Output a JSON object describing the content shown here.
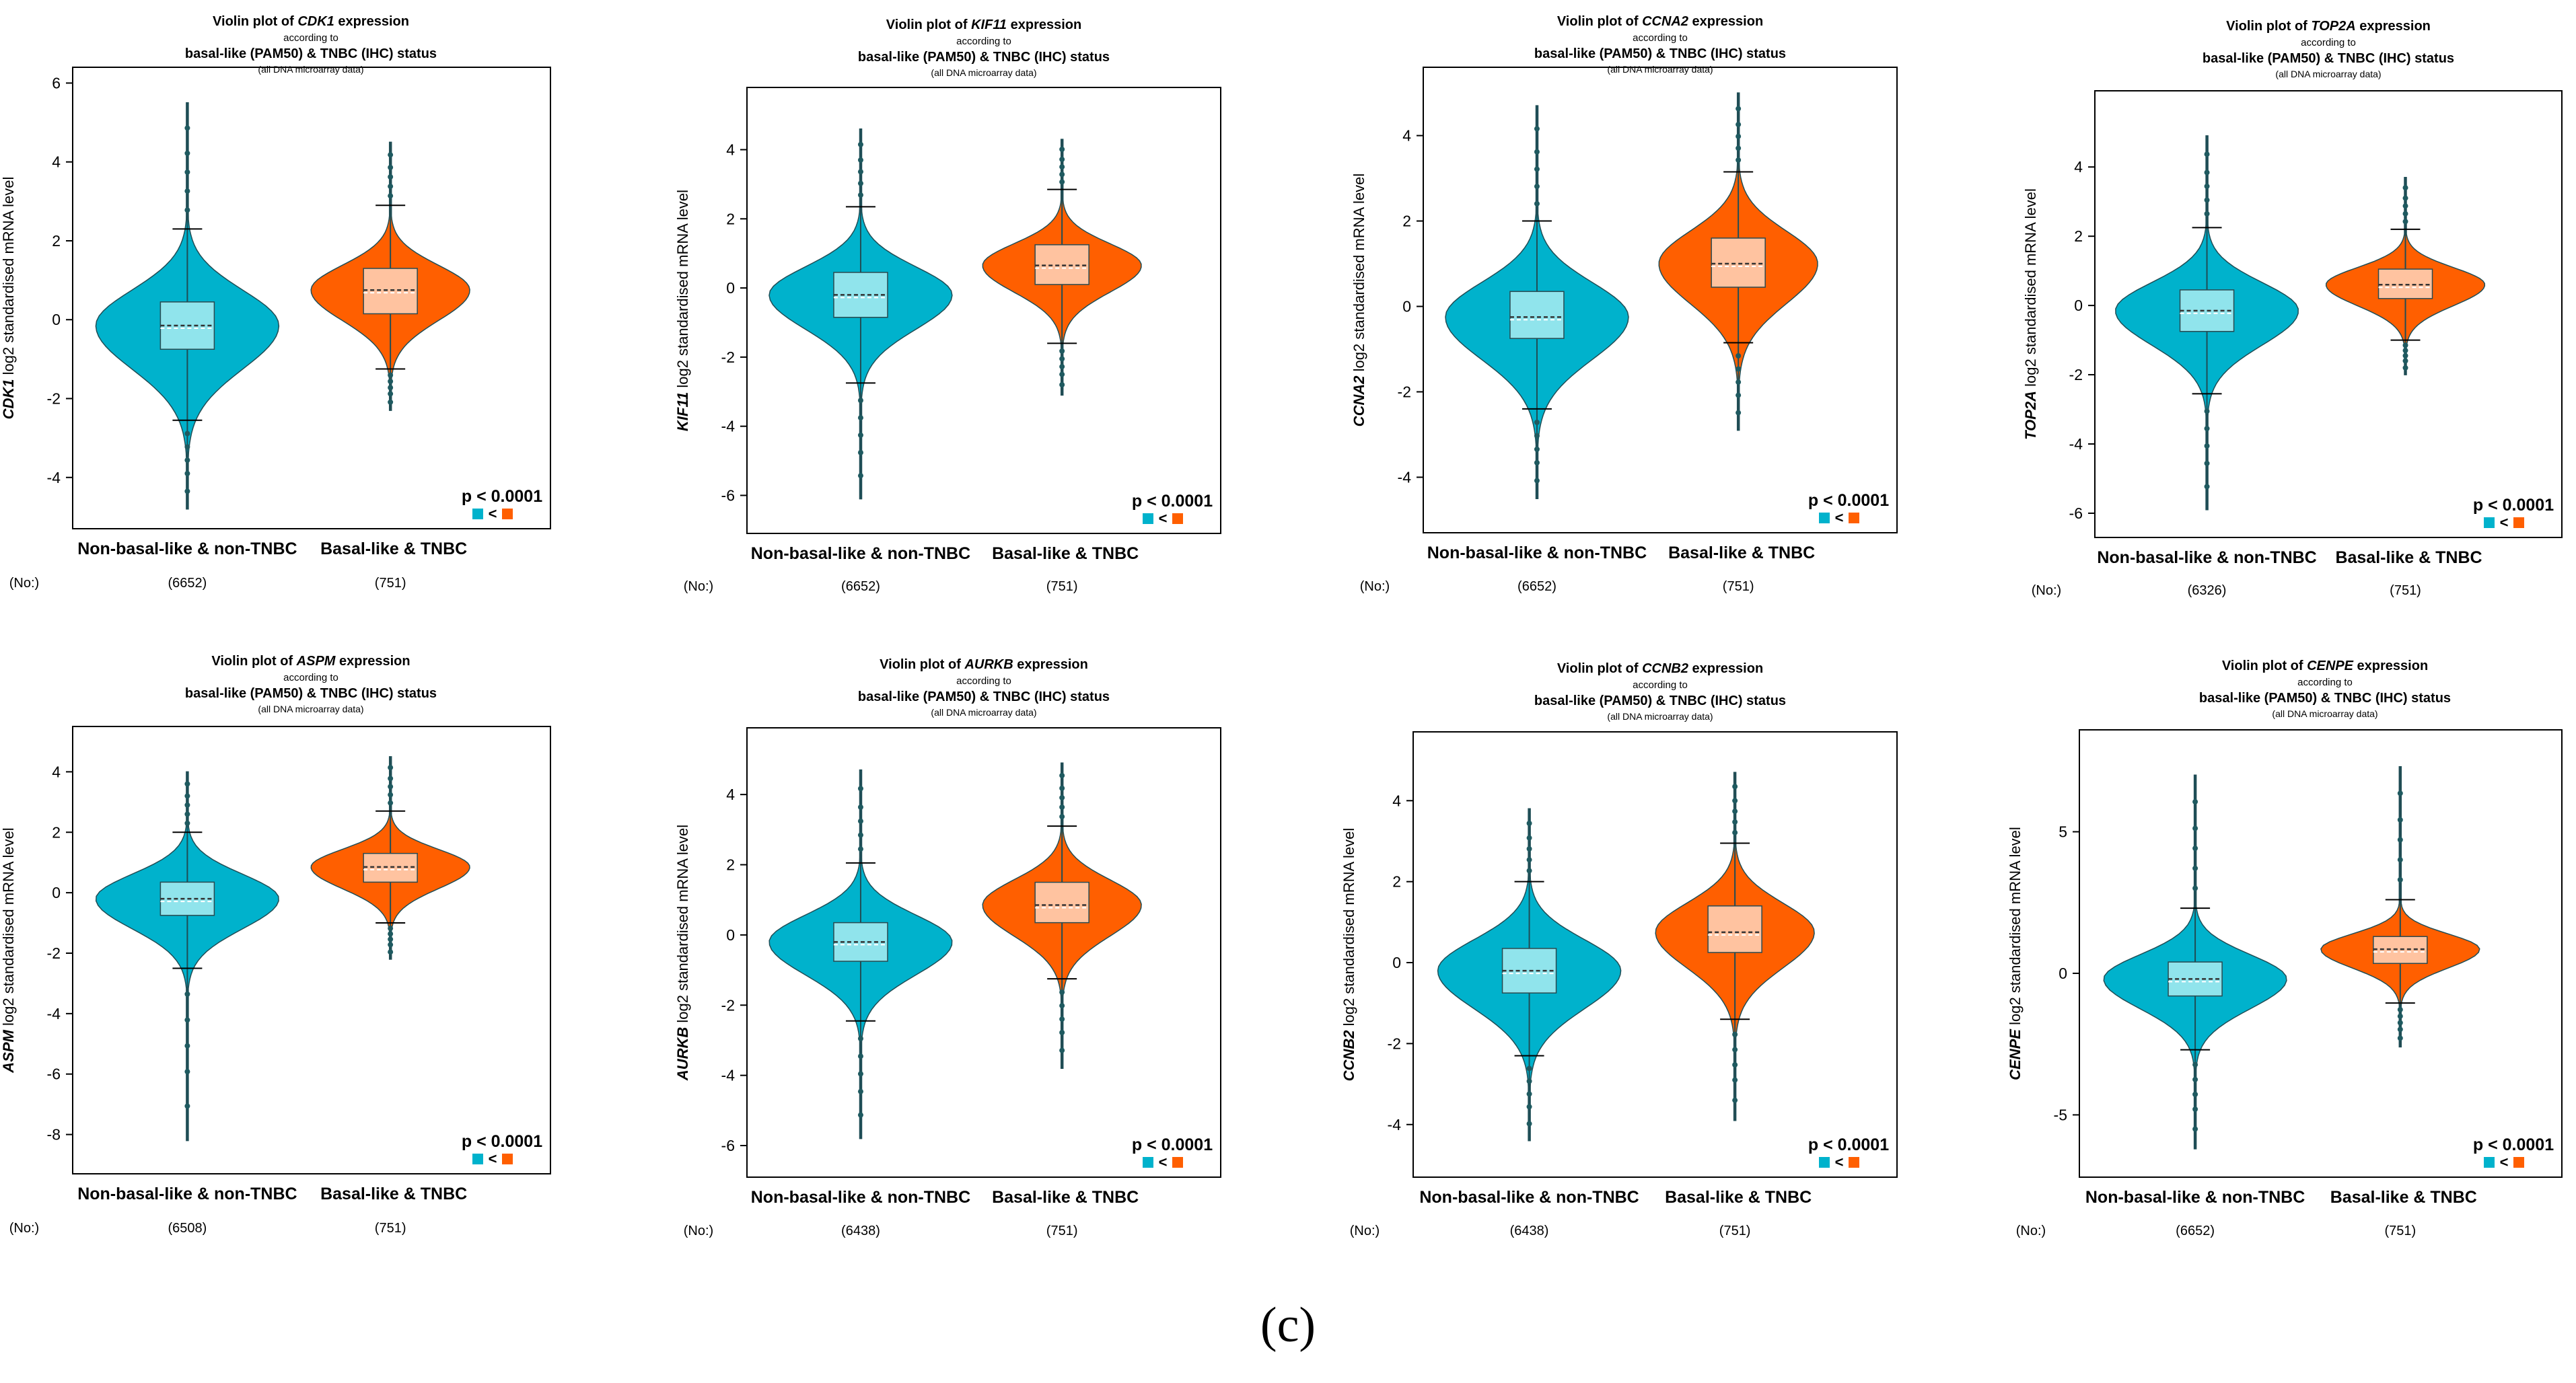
{
  "figure": {
    "caption": "(c)"
  },
  "colors": {
    "group1": "#00B2CC",
    "group1_box": "#90E4EC",
    "group2": "#FF5F00",
    "group2_box": "#FFC3A0",
    "axis": "#000000",
    "median_line": "#333333"
  },
  "common": {
    "title_prefix": "Violin plot of ",
    "title_suffix": " expression",
    "line2": "according to",
    "line3": "basal-like (PAM50) & TNBC (IHC) status",
    "line4": "(all DNA microarray data)",
    "ylabel_suffix": " log2 standardised mRNA level",
    "group1": "Non-basal-like & non-TNBC",
    "group2": "Basal-like & TNBC",
    "no_label": "(No:)",
    "pvalue": "p < 0.0001",
    "lt": "<"
  },
  "chart_data": [
    {
      "type": "violin",
      "gene": "CDK1",
      "ylim": [
        -5.3,
        6.4
      ],
      "yticks": [
        -4,
        -2,
        0,
        2,
        4,
        6
      ],
      "groups": [
        {
          "name": "Non-basal-like & non-TNBC",
          "n": "(6652)",
          "min": -4.8,
          "max": 5.5,
          "q1": -0.75,
          "median": -0.15,
          "q3": 0.45,
          "wlo": -2.55,
          "whi": 2.3,
          "sd": 1.0
        },
        {
          "name": "Basal-like & TNBC",
          "n": "(751)",
          "min": -2.3,
          "max": 4.5,
          "q1": 0.15,
          "median": 0.75,
          "q3": 1.3,
          "wlo": -1.25,
          "whi": 2.9,
          "sd": 0.7
        }
      ]
    },
    {
      "type": "violin",
      "gene": "KIF11",
      "ylim": [
        -7.1,
        5.8
      ],
      "yticks": [
        -6,
        -4,
        -2,
        0,
        2,
        4
      ],
      "groups": [
        {
          "name": "Non-basal-like & non-TNBC",
          "n": "(6652)",
          "min": -6.1,
          "max": 4.6,
          "q1": -0.85,
          "median": -0.2,
          "q3": 0.45,
          "wlo": -2.75,
          "whi": 2.35,
          "sd": 0.9
        },
        {
          "name": "Basal-like & TNBC",
          "n": "(751)",
          "min": -3.1,
          "max": 4.3,
          "q1": 0.1,
          "median": 0.65,
          "q3": 1.25,
          "wlo": -1.6,
          "whi": 2.85,
          "sd": 0.7
        }
      ]
    },
    {
      "type": "violin",
      "gene": "CCNA2",
      "ylim": [
        -5.3,
        5.6
      ],
      "yticks": [
        -4,
        -2,
        0,
        2,
        4
      ],
      "groups": [
        {
          "name": "Non-basal-like & non-TNBC",
          "n": "(6652)",
          "min": -4.5,
          "max": 4.7,
          "q1": -0.75,
          "median": -0.25,
          "q3": 0.35,
          "wlo": -2.4,
          "whi": 2.0,
          "sd": 0.9
        },
        {
          "name": "Basal-like & TNBC",
          "n": "(751)",
          "min": -2.9,
          "max": 5.0,
          "q1": 0.45,
          "median": 1.0,
          "q3": 1.6,
          "wlo": -0.85,
          "whi": 3.15,
          "sd": 0.85
        }
      ]
    },
    {
      "type": "violin",
      "gene": "TOP2A",
      "ylim": [
        -6.7,
        6.2
      ],
      "yticks": [
        -6,
        -4,
        -2,
        0,
        2,
        4
      ],
      "groups": [
        {
          "name": "Non-basal-like & non-TNBC",
          "n": "(6326)",
          "min": -5.9,
          "max": 4.9,
          "q1": -0.75,
          "median": -0.15,
          "q3": 0.45,
          "wlo": -2.55,
          "whi": 2.25,
          "sd": 0.9
        },
        {
          "name": "Basal-like & TNBC",
          "n": "(751)",
          "min": -2.0,
          "max": 3.7,
          "q1": 0.2,
          "median": 0.6,
          "q3": 1.05,
          "wlo": -1.0,
          "whi": 2.2,
          "sd": 0.55
        }
      ]
    },
    {
      "type": "violin",
      "gene": "ASPM",
      "ylim": [
        -9.3,
        5.5
      ],
      "yticks": [
        -8,
        -6,
        -4,
        -2,
        0,
        2,
        4
      ],
      "groups": [
        {
          "name": "Non-basal-like & non-TNBC",
          "n": "(6508)",
          "min": -8.2,
          "max": 4.0,
          "q1": -0.75,
          "median": -0.2,
          "q3": 0.35,
          "wlo": -2.5,
          "whi": 2.0,
          "sd": 0.9
        },
        {
          "name": "Basal-like & TNBC",
          "n": "(751)",
          "min": -2.2,
          "max": 4.5,
          "q1": 0.35,
          "median": 0.85,
          "q3": 1.3,
          "wlo": -1.0,
          "whi": 2.7,
          "sd": 0.65
        }
      ]
    },
    {
      "type": "violin",
      "gene": "AURKB",
      "ylim": [
        -6.9,
        5.9
      ],
      "yticks": [
        -6,
        -4,
        -2,
        0,
        2,
        4
      ],
      "groups": [
        {
          "name": "Non-basal-like & non-TNBC",
          "n": "(6438)",
          "min": -5.8,
          "max": 4.7,
          "q1": -0.75,
          "median": -0.2,
          "q3": 0.35,
          "wlo": -2.45,
          "whi": 2.05,
          "sd": 0.85
        },
        {
          "name": "Basal-like & TNBC",
          "n": "(751)",
          "min": -3.8,
          "max": 4.9,
          "q1": 0.35,
          "median": 0.85,
          "q3": 1.5,
          "wlo": -1.25,
          "whi": 3.1,
          "sd": 0.8
        }
      ]
    },
    {
      "type": "violin",
      "gene": "CCNB2",
      "ylim": [
        -5.3,
        5.7
      ],
      "yticks": [
        -4,
        -2,
        0,
        2,
        4
      ],
      "groups": [
        {
          "name": "Non-basal-like & non-TNBC",
          "n": "(6438)",
          "min": -4.4,
          "max": 3.8,
          "q1": -0.75,
          "median": -0.2,
          "q3": 0.35,
          "wlo": -2.3,
          "whi": 2.0,
          "sd": 0.85
        },
        {
          "name": "Basal-like & TNBC",
          "n": "(751)",
          "min": -3.9,
          "max": 4.7,
          "q1": 0.25,
          "median": 0.75,
          "q3": 1.4,
          "wlo": -1.4,
          "whi": 2.95,
          "sd": 0.8
        }
      ]
    },
    {
      "type": "violin",
      "gene": "CENPE",
      "ylim": [
        -7.2,
        8.6
      ],
      "yticks": [
        -5,
        0,
        5
      ],
      "groups": [
        {
          "name": "Non-basal-like & non-TNBC",
          "n": "(6652)",
          "min": -6.2,
          "max": 7.0,
          "q1": -0.8,
          "median": -0.2,
          "q3": 0.4,
          "wlo": -2.7,
          "whi": 2.3,
          "sd": 0.95
        },
        {
          "name": "Basal-like & TNBC",
          "n": "(751)",
          "min": -2.6,
          "max": 7.3,
          "q1": 0.35,
          "median": 0.85,
          "q3": 1.3,
          "wlo": -1.05,
          "whi": 2.6,
          "sd": 0.6
        }
      ]
    }
  ]
}
